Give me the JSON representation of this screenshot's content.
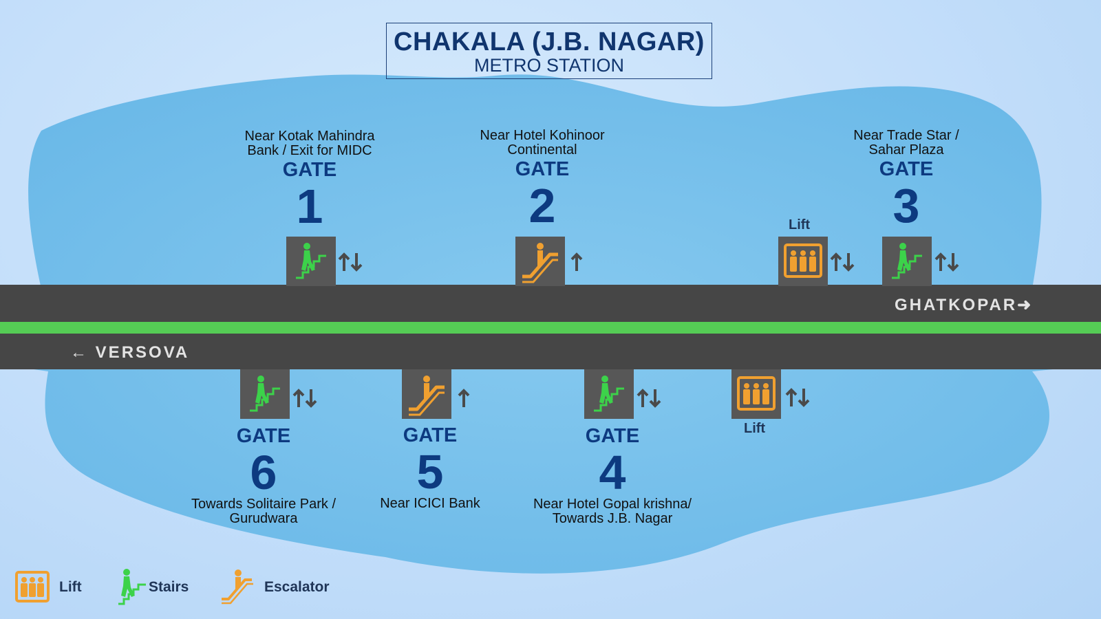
{
  "title": {
    "main": "CHAKALA (J.B. NAGAR)",
    "sub": "METRO STATION"
  },
  "directions": {
    "east": "GHATKOPAR",
    "west": "VERSOVA"
  },
  "gates": [
    {
      "id": 1,
      "word": "GATE",
      "number": "1",
      "desc_line1": "Near Kotak Mahindra",
      "desc_line2": "Bank / Exit for MIDC",
      "access": "stairs",
      "flow": "up-down"
    },
    {
      "id": 2,
      "word": "GATE",
      "number": "2",
      "desc_line1": "Near Hotel Kohinoor",
      "desc_line2": "Continental",
      "access": "escalator",
      "flow": "up"
    },
    {
      "id": 3,
      "word": "GATE",
      "number": "3",
      "desc_line1": "Near Trade Star /",
      "desc_line2": "Sahar Plaza",
      "access": "stairs",
      "flow": "up-down"
    },
    {
      "id": 4,
      "word": "GATE",
      "number": "4",
      "desc_line1": "Near Hotel Gopal krishna/",
      "desc_line2": "Towards J.B. Nagar",
      "access": "stairs",
      "flow": "up-down"
    },
    {
      "id": 5,
      "word": "GATE",
      "number": "5",
      "desc_line1": "Near ICICI Bank",
      "desc_line2": "",
      "access": "escalator",
      "flow": "up"
    },
    {
      "id": 6,
      "word": "GATE",
      "number": "6",
      "desc_line1": "Towards Solitaire Park /",
      "desc_line2": "Gurudwara",
      "access": "stairs",
      "flow": "up-down"
    }
  ],
  "lifts": [
    {
      "label": "Lift",
      "side": "north",
      "flow": "up-down"
    },
    {
      "label": "Lift",
      "side": "south",
      "flow": "up-down"
    }
  ],
  "legend": {
    "lift": "Lift",
    "stairs": "Stairs",
    "escalator": "Escalator"
  },
  "colors": {
    "track": "#464646",
    "line": "#55cc55",
    "gate_text": "#0d3a80",
    "stairs_icon": "#3cd24a",
    "escalator_icon": "#f0a030",
    "lift_icon": "#f0a030",
    "icon_box": "#575757",
    "blob": "#7cc3ec"
  }
}
